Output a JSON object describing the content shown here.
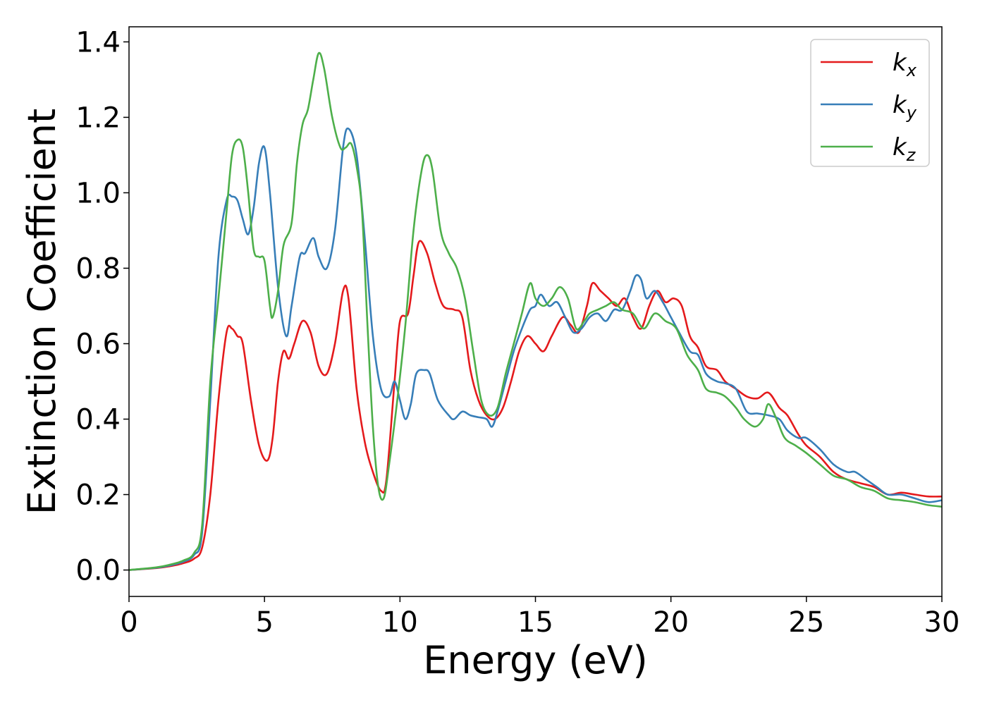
{
  "chart_data": {
    "type": "line",
    "title": "",
    "xlabel": "Energy (eV)",
    "ylabel": "Extinction Coefficient",
    "xlim": [
      0,
      30
    ],
    "ylim": [
      -0.07,
      1.44
    ],
    "xticks": [
      0,
      5,
      10,
      15,
      20,
      25,
      30
    ],
    "yticks": [
      0.0,
      0.2,
      0.4,
      0.6,
      0.8,
      1.0,
      1.2,
      1.4
    ],
    "ytick_labels": [
      "0.0",
      "0.2",
      "0.4",
      "0.6",
      "0.8",
      "1.0",
      "1.2",
      "1.4"
    ],
    "grid": false,
    "legend_position": "top-right",
    "series": [
      {
        "name": "k",
        "subscript": "x",
        "color": "#e41a1c",
        "points": [
          [
            0,
            0
          ],
          [
            1,
            0.005
          ],
          [
            1.5,
            0.01
          ],
          [
            2,
            0.018
          ],
          [
            2.4,
            0.03
          ],
          [
            2.7,
            0.06
          ],
          [
            3.0,
            0.2
          ],
          [
            3.3,
            0.45
          ],
          [
            3.6,
            0.63
          ],
          [
            3.8,
            0.64
          ],
          [
            4.0,
            0.62
          ],
          [
            4.2,
            0.6
          ],
          [
            4.5,
            0.45
          ],
          [
            4.8,
            0.33
          ],
          [
            5.1,
            0.29
          ],
          [
            5.3,
            0.35
          ],
          [
            5.5,
            0.5
          ],
          [
            5.7,
            0.58
          ],
          [
            5.9,
            0.56
          ],
          [
            6.1,
            0.6
          ],
          [
            6.4,
            0.66
          ],
          [
            6.7,
            0.63
          ],
          [
            7.0,
            0.54
          ],
          [
            7.3,
            0.52
          ],
          [
            7.6,
            0.6
          ],
          [
            7.9,
            0.74
          ],
          [
            8.1,
            0.72
          ],
          [
            8.4,
            0.48
          ],
          [
            8.7,
            0.34
          ],
          [
            9.0,
            0.26
          ],
          [
            9.3,
            0.21
          ],
          [
            9.5,
            0.24
          ],
          [
            9.8,
            0.5
          ],
          [
            10.0,
            0.66
          ],
          [
            10.3,
            0.68
          ],
          [
            10.5,
            0.78
          ],
          [
            10.7,
            0.87
          ],
          [
            11.0,
            0.84
          ],
          [
            11.3,
            0.76
          ],
          [
            11.6,
            0.7
          ],
          [
            12.0,
            0.69
          ],
          [
            12.3,
            0.67
          ],
          [
            12.6,
            0.53
          ],
          [
            12.9,
            0.45
          ],
          [
            13.2,
            0.41
          ],
          [
            13.5,
            0.4
          ],
          [
            13.8,
            0.43
          ],
          [
            14.1,
            0.5
          ],
          [
            14.4,
            0.58
          ],
          [
            14.7,
            0.62
          ],
          [
            15.0,
            0.6
          ],
          [
            15.3,
            0.58
          ],
          [
            15.6,
            0.62
          ],
          [
            16.0,
            0.67
          ],
          [
            16.3,
            0.65
          ],
          [
            16.6,
            0.63
          ],
          [
            16.9,
            0.7
          ],
          [
            17.1,
            0.76
          ],
          [
            17.4,
            0.74
          ],
          [
            17.7,
            0.72
          ],
          [
            18.0,
            0.7
          ],
          [
            18.3,
            0.72
          ],
          [
            18.6,
            0.67
          ],
          [
            18.9,
            0.64
          ],
          [
            19.2,
            0.7
          ],
          [
            19.5,
            0.74
          ],
          [
            19.8,
            0.71
          ],
          [
            20.1,
            0.72
          ],
          [
            20.4,
            0.7
          ],
          [
            20.7,
            0.62
          ],
          [
            21.0,
            0.59
          ],
          [
            21.3,
            0.54
          ],
          [
            21.7,
            0.53
          ],
          [
            22.0,
            0.5
          ],
          [
            22.4,
            0.48
          ],
          [
            22.8,
            0.46
          ],
          [
            23.2,
            0.455
          ],
          [
            23.6,
            0.47
          ],
          [
            24.0,
            0.43
          ],
          [
            24.3,
            0.41
          ],
          [
            24.7,
            0.36
          ],
          [
            25.0,
            0.33
          ],
          [
            25.5,
            0.3
          ],
          [
            26.0,
            0.26
          ],
          [
            26.5,
            0.24
          ],
          [
            27.0,
            0.23
          ],
          [
            27.5,
            0.22
          ],
          [
            28.0,
            0.2
          ],
          [
            28.5,
            0.205
          ],
          [
            29.0,
            0.2
          ],
          [
            29.5,
            0.195
          ],
          [
            30.0,
            0.195
          ]
        ]
      },
      {
        "name": "k",
        "subscript": "y",
        "color": "#377eb8",
        "points": [
          [
            0,
            0
          ],
          [
            1,
            0.006
          ],
          [
            1.5,
            0.012
          ],
          [
            2,
            0.022
          ],
          [
            2.4,
            0.04
          ],
          [
            2.7,
            0.1
          ],
          [
            3.0,
            0.45
          ],
          [
            3.3,
            0.83
          ],
          [
            3.6,
            0.98
          ],
          [
            3.8,
            0.99
          ],
          [
            4.0,
            0.98
          ],
          [
            4.2,
            0.93
          ],
          [
            4.4,
            0.89
          ],
          [
            4.6,
            0.96
          ],
          [
            4.8,
            1.08
          ],
          [
            5.0,
            1.12
          ],
          [
            5.2,
            1.0
          ],
          [
            5.5,
            0.75
          ],
          [
            5.8,
            0.62
          ],
          [
            6.0,
            0.7
          ],
          [
            6.3,
            0.83
          ],
          [
            6.5,
            0.84
          ],
          [
            6.8,
            0.88
          ],
          [
            7.0,
            0.83
          ],
          [
            7.3,
            0.8
          ],
          [
            7.6,
            0.9
          ],
          [
            7.9,
            1.12
          ],
          [
            8.1,
            1.17
          ],
          [
            8.4,
            1.1
          ],
          [
            8.7,
            0.88
          ],
          [
            9.0,
            0.62
          ],
          [
            9.3,
            0.48
          ],
          [
            9.6,
            0.46
          ],
          [
            9.8,
            0.5
          ],
          [
            10.0,
            0.45
          ],
          [
            10.2,
            0.4
          ],
          [
            10.4,
            0.44
          ],
          [
            10.6,
            0.52
          ],
          [
            10.9,
            0.53
          ],
          [
            11.1,
            0.52
          ],
          [
            11.4,
            0.45
          ],
          [
            11.8,
            0.41
          ],
          [
            12.0,
            0.4
          ],
          [
            12.3,
            0.42
          ],
          [
            12.6,
            0.41
          ],
          [
            12.9,
            0.405
          ],
          [
            13.2,
            0.4
          ],
          [
            13.4,
            0.38
          ],
          [
            13.6,
            0.42
          ],
          [
            13.9,
            0.5
          ],
          [
            14.2,
            0.58
          ],
          [
            14.5,
            0.64
          ],
          [
            14.8,
            0.69
          ],
          [
            15.0,
            0.7
          ],
          [
            15.2,
            0.73
          ],
          [
            15.5,
            0.7
          ],
          [
            15.8,
            0.71
          ],
          [
            16.1,
            0.67
          ],
          [
            16.4,
            0.63
          ],
          [
            16.7,
            0.64
          ],
          [
            17.0,
            0.67
          ],
          [
            17.3,
            0.68
          ],
          [
            17.6,
            0.66
          ],
          [
            17.9,
            0.69
          ],
          [
            18.2,
            0.69
          ],
          [
            18.5,
            0.74
          ],
          [
            18.7,
            0.78
          ],
          [
            18.9,
            0.77
          ],
          [
            19.1,
            0.72
          ],
          [
            19.4,
            0.74
          ],
          [
            19.7,
            0.71
          ],
          [
            20.0,
            0.67
          ],
          [
            20.3,
            0.63
          ],
          [
            20.7,
            0.58
          ],
          [
            21.0,
            0.57
          ],
          [
            21.3,
            0.52
          ],
          [
            21.7,
            0.5
          ],
          [
            22.0,
            0.495
          ],
          [
            22.4,
            0.48
          ],
          [
            22.8,
            0.42
          ],
          [
            23.2,
            0.415
          ],
          [
            23.6,
            0.41
          ],
          [
            24.0,
            0.4
          ],
          [
            24.3,
            0.37
          ],
          [
            24.7,
            0.35
          ],
          [
            25.0,
            0.35
          ],
          [
            25.5,
            0.32
          ],
          [
            26.0,
            0.28
          ],
          [
            26.5,
            0.26
          ],
          [
            26.8,
            0.26
          ],
          [
            27.2,
            0.24
          ],
          [
            27.6,
            0.22
          ],
          [
            28.0,
            0.2
          ],
          [
            28.5,
            0.2
          ],
          [
            29.0,
            0.19
          ],
          [
            29.5,
            0.18
          ],
          [
            30.0,
            0.185
          ]
        ]
      },
      {
        "name": "k",
        "subscript": "z",
        "color": "#4daf4a",
        "points": [
          [
            0,
            0
          ],
          [
            1,
            0.007
          ],
          [
            1.5,
            0.014
          ],
          [
            2,
            0.025
          ],
          [
            2.4,
            0.045
          ],
          [
            2.7,
            0.12
          ],
          [
            3.0,
            0.5
          ],
          [
            3.3,
            0.72
          ],
          [
            3.6,
            0.95
          ],
          [
            3.8,
            1.1
          ],
          [
            4.0,
            1.14
          ],
          [
            4.2,
            1.12
          ],
          [
            4.4,
            1.0
          ],
          [
            4.6,
            0.85
          ],
          [
            4.8,
            0.83
          ],
          [
            5.0,
            0.82
          ],
          [
            5.2,
            0.7
          ],
          [
            5.3,
            0.67
          ],
          [
            5.5,
            0.74
          ],
          [
            5.7,
            0.86
          ],
          [
            6.0,
            0.92
          ],
          [
            6.2,
            1.08
          ],
          [
            6.4,
            1.18
          ],
          [
            6.6,
            1.22
          ],
          [
            6.8,
            1.3
          ],
          [
            7.0,
            1.37
          ],
          [
            7.2,
            1.33
          ],
          [
            7.5,
            1.2
          ],
          [
            7.8,
            1.12
          ],
          [
            8.0,
            1.12
          ],
          [
            8.2,
            1.13
          ],
          [
            8.4,
            1.07
          ],
          [
            8.6,
            0.95
          ],
          [
            8.8,
            0.65
          ],
          [
            9.0,
            0.38
          ],
          [
            9.2,
            0.22
          ],
          [
            9.4,
            0.19
          ],
          [
            9.6,
            0.28
          ],
          [
            9.9,
            0.45
          ],
          [
            10.2,
            0.65
          ],
          [
            10.5,
            0.9
          ],
          [
            10.8,
            1.06
          ],
          [
            11.0,
            1.1
          ],
          [
            11.2,
            1.06
          ],
          [
            11.5,
            0.9
          ],
          [
            11.8,
            0.84
          ],
          [
            12.1,
            0.8
          ],
          [
            12.4,
            0.72
          ],
          [
            12.7,
            0.58
          ],
          [
            13.0,
            0.45
          ],
          [
            13.3,
            0.41
          ],
          [
            13.6,
            0.43
          ],
          [
            13.9,
            0.52
          ],
          [
            14.2,
            0.6
          ],
          [
            14.5,
            0.68
          ],
          [
            14.8,
            0.76
          ],
          [
            15.0,
            0.72
          ],
          [
            15.3,
            0.7
          ],
          [
            15.6,
            0.72
          ],
          [
            15.9,
            0.75
          ],
          [
            16.2,
            0.72
          ],
          [
            16.5,
            0.64
          ],
          [
            16.8,
            0.66
          ],
          [
            17.0,
            0.68
          ],
          [
            17.3,
            0.69
          ],
          [
            17.6,
            0.7
          ],
          [
            17.9,
            0.71
          ],
          [
            18.2,
            0.69
          ],
          [
            18.6,
            0.68
          ],
          [
            19.0,
            0.64
          ],
          [
            19.4,
            0.68
          ],
          [
            19.8,
            0.66
          ],
          [
            20.2,
            0.64
          ],
          [
            20.6,
            0.57
          ],
          [
            21.0,
            0.53
          ],
          [
            21.3,
            0.48
          ],
          [
            21.7,
            0.47
          ],
          [
            22.0,
            0.46
          ],
          [
            22.4,
            0.43
          ],
          [
            22.7,
            0.4
          ],
          [
            23.1,
            0.38
          ],
          [
            23.4,
            0.4
          ],
          [
            23.6,
            0.44
          ],
          [
            23.9,
            0.4
          ],
          [
            24.2,
            0.35
          ],
          [
            24.6,
            0.33
          ],
          [
            25.0,
            0.31
          ],
          [
            25.5,
            0.28
          ],
          [
            26.0,
            0.25
          ],
          [
            26.5,
            0.24
          ],
          [
            27.0,
            0.22
          ],
          [
            27.5,
            0.21
          ],
          [
            28.0,
            0.19
          ],
          [
            28.5,
            0.185
          ],
          [
            29.0,
            0.18
          ],
          [
            29.5,
            0.172
          ],
          [
            30.0,
            0.168
          ]
        ]
      }
    ]
  }
}
